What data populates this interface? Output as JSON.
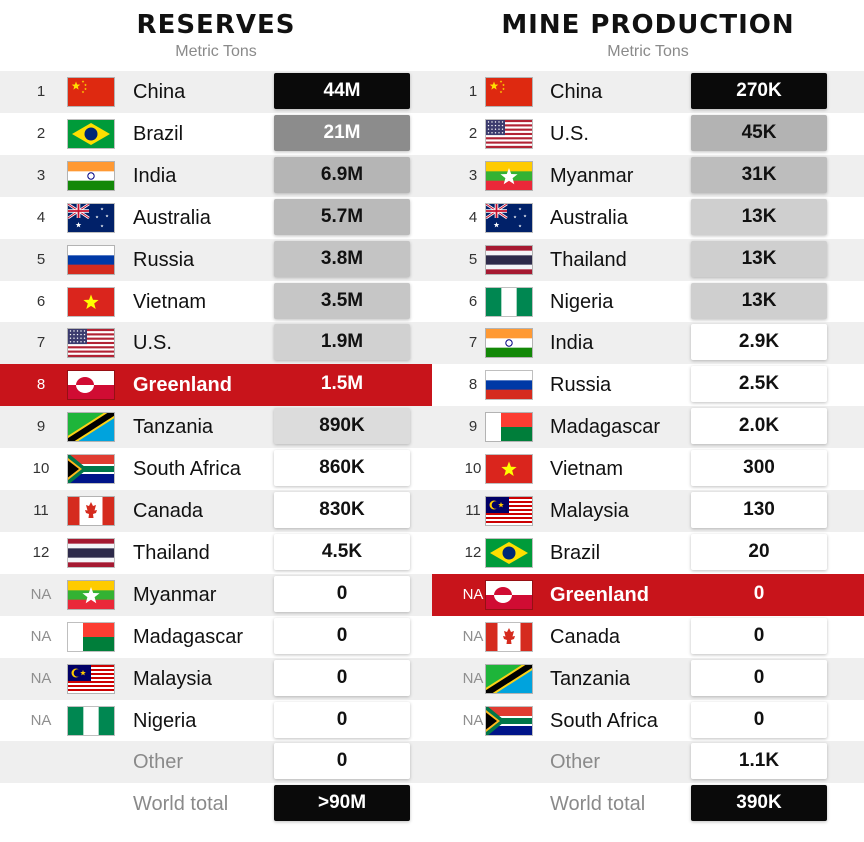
{
  "colors": {
    "highlight": "#c8141b",
    "black_box": "#0a0a0a",
    "row_alt": "#efefef"
  },
  "chart_data": [
    {
      "type": "table",
      "title": "RESERVES",
      "subtitle": "Metric Tons",
      "rows": [
        {
          "rank": "1",
          "country": "China",
          "value": "44M",
          "flag": "flag-china"
        },
        {
          "rank": "2",
          "country": "Brazil",
          "value": "21M",
          "flag": "flag-brazil"
        },
        {
          "rank": "3",
          "country": "India",
          "value": "6.9M",
          "flag": "flag-india"
        },
        {
          "rank": "4",
          "country": "Australia",
          "value": "5.7M",
          "flag": "flag-australia"
        },
        {
          "rank": "5",
          "country": "Russia",
          "value": "3.8M",
          "flag": "flag-russia"
        },
        {
          "rank": "6",
          "country": "Vietnam",
          "value": "3.5M",
          "flag": "flag-vietnam"
        },
        {
          "rank": "7",
          "country": "U.S.",
          "value": "1.9M",
          "flag": "flag-us"
        },
        {
          "rank": "8",
          "country": "Greenland",
          "value": "1.5M",
          "flag": "flag-greenland",
          "highlight": true
        },
        {
          "rank": "9",
          "country": "Tanzania",
          "value": "890K",
          "flag": "flag-tanzania"
        },
        {
          "rank": "10",
          "country": "South Africa",
          "value": "860K",
          "flag": "flag-south-africa"
        },
        {
          "rank": "11",
          "country": "Canada",
          "value": "830K",
          "flag": "flag-canada"
        },
        {
          "rank": "12",
          "country": "Thailand",
          "value": "4.5K",
          "flag": "flag-thailand"
        },
        {
          "rank": "NA",
          "country": "Myanmar",
          "value": "0",
          "flag": "flag-myanmar"
        },
        {
          "rank": "NA",
          "country": "Madagascar",
          "value": "0",
          "flag": "flag-madagascar"
        },
        {
          "rank": "NA",
          "country": "Malaysia",
          "value": "0",
          "flag": "flag-malaysia"
        },
        {
          "rank": "NA",
          "country": "Nigeria",
          "value": "0",
          "flag": "flag-nigeria"
        },
        {
          "rank": "",
          "country": "Other",
          "value": "0",
          "flag": ""
        },
        {
          "rank": "",
          "country": "World total",
          "value": ">90M",
          "flag": "",
          "total": true
        }
      ]
    },
    {
      "type": "table",
      "title": "MINE PRODUCTION",
      "subtitle": "Metric Tons",
      "rows": [
        {
          "rank": "1",
          "country": "China",
          "value": "270K",
          "flag": "flag-china"
        },
        {
          "rank": "2",
          "country": "U.S.",
          "value": "45K",
          "flag": "flag-us"
        },
        {
          "rank": "3",
          "country": "Myanmar",
          "value": "31K",
          "flag": "flag-myanmar"
        },
        {
          "rank": "4",
          "country": "Australia",
          "value": "13K",
          "flag": "flag-australia"
        },
        {
          "rank": "5",
          "country": "Thailand",
          "value": "13K",
          "flag": "flag-thailand"
        },
        {
          "rank": "6",
          "country": "Nigeria",
          "value": "13K",
          "flag": "flag-nigeria"
        },
        {
          "rank": "7",
          "country": "India",
          "value": "2.9K",
          "flag": "flag-india"
        },
        {
          "rank": "8",
          "country": "Russia",
          "value": "2.5K",
          "flag": "flag-russia"
        },
        {
          "rank": "9",
          "country": "Madagascar",
          "value": "2.0K",
          "flag": "flag-madagascar"
        },
        {
          "rank": "10",
          "country": "Vietnam",
          "value": "300",
          "flag": "flag-vietnam"
        },
        {
          "rank": "11",
          "country": "Malaysia",
          "value": "130",
          "flag": "flag-malaysia"
        },
        {
          "rank": "12",
          "country": "Brazil",
          "value": "20",
          "flag": "flag-brazil"
        },
        {
          "rank": "NA",
          "country": "Greenland",
          "value": "0",
          "flag": "flag-greenland",
          "highlight": true
        },
        {
          "rank": "NA",
          "country": "Canada",
          "value": "0",
          "flag": "flag-canada"
        },
        {
          "rank": "NA",
          "country": "Tanzania",
          "value": "0",
          "flag": "flag-tanzania"
        },
        {
          "rank": "NA",
          "country": "South Africa",
          "value": "0",
          "flag": "flag-south-africa"
        },
        {
          "rank": "",
          "country": "Other",
          "value": "1.1K",
          "flag": ""
        },
        {
          "rank": "",
          "country": "World total",
          "value": "390K",
          "flag": "",
          "total": true
        }
      ]
    }
  ]
}
